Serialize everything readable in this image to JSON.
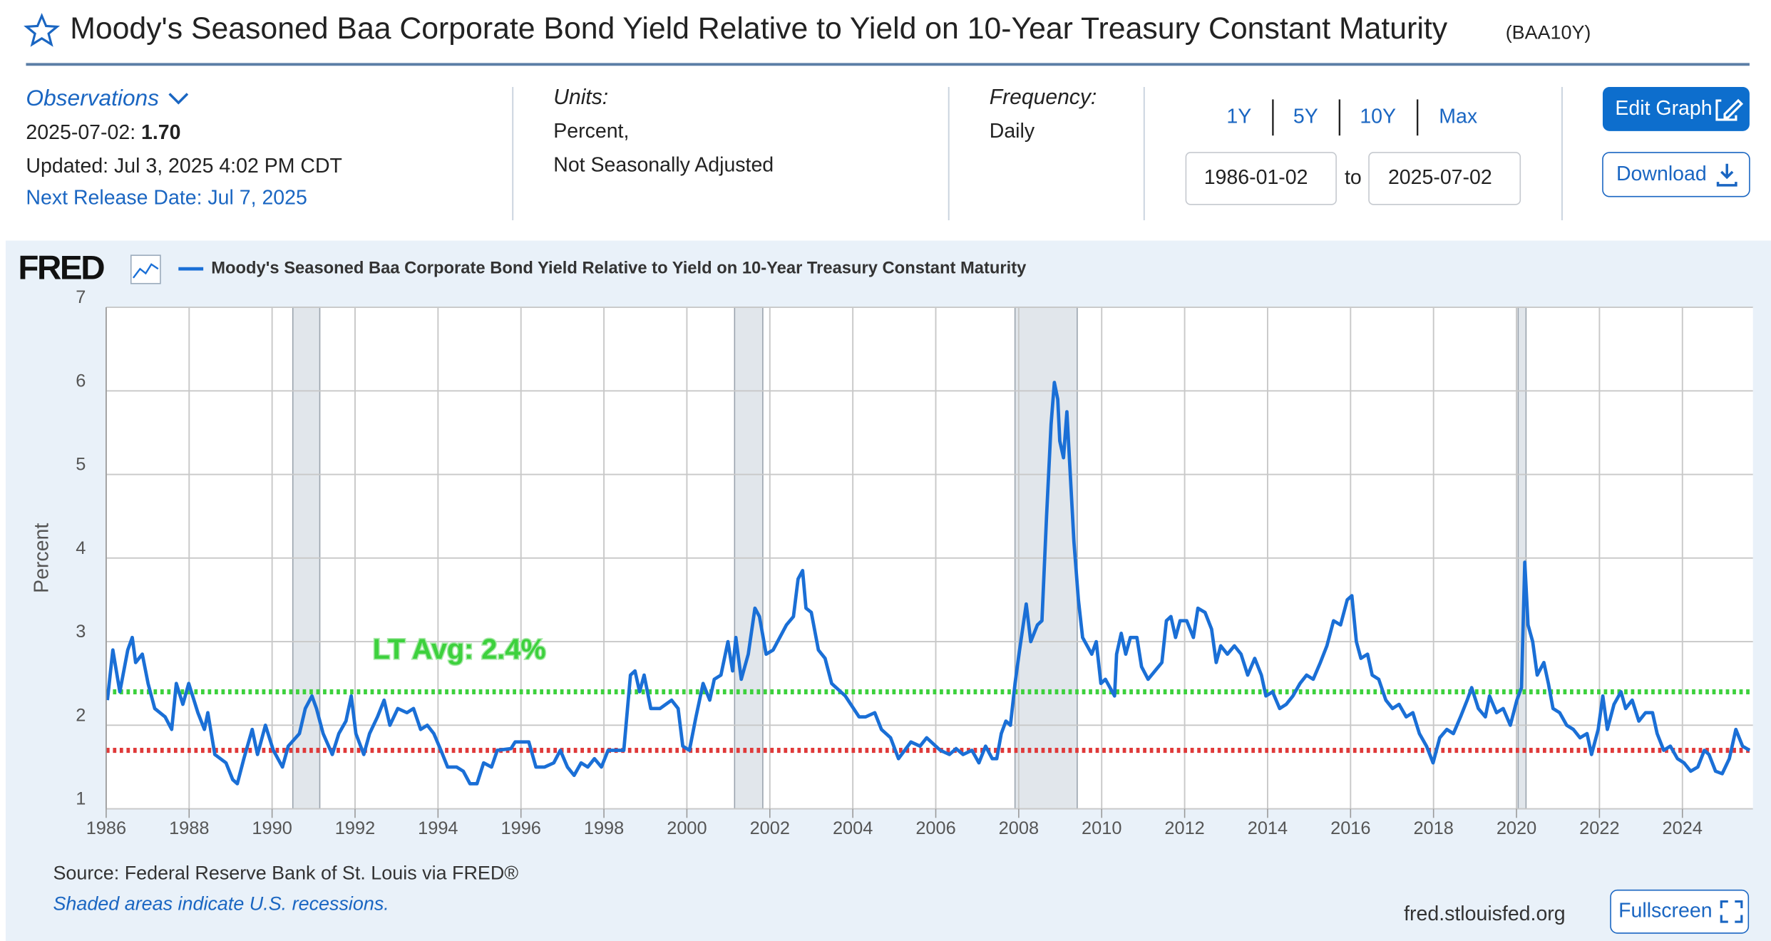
{
  "header": {
    "title": "Moody's Seasoned Baa Corporate Bond Yield Relative to Yield on 10-Year Treasury Constant Maturity",
    "code": "(BAA10Y)"
  },
  "observations": {
    "label": "Observations",
    "date": "2025-07-02:",
    "value": "1.70",
    "updated": "Updated: Jul 3, 2025 4:02 PM CDT",
    "next_release": "Next Release Date: Jul 7, 2025"
  },
  "units": {
    "label": "Units:",
    "lines": [
      "Percent,",
      "Not Seasonally Adjusted"
    ]
  },
  "frequency": {
    "label": "Frequency:",
    "value": "Daily"
  },
  "range_buttons": [
    "1Y",
    "5Y",
    "10Y",
    "Max"
  ],
  "date_range": {
    "start": "1986-01-02",
    "to": "to",
    "end": "2025-07-02"
  },
  "buttons": {
    "edit": "Edit Graph",
    "download": "Download",
    "fullscreen": "Fullscreen"
  },
  "chart_header": {
    "logo": "FRED"
  },
  "footer": {
    "source": "Source: Federal Reserve Bank of St. Louis via FRED®",
    "note": "Shaded areas indicate U.S. recessions.",
    "site": "fred.stlouisfed.org"
  },
  "chart_data": {
    "type": "line",
    "y_label": "Percent",
    "xlim": [
      1986,
      2025.7
    ],
    "xticks": [
      1986,
      1988,
      1990,
      1992,
      1994,
      1996,
      1998,
      2000,
      2002,
      2004,
      2006,
      2008,
      2010,
      2012,
      2014,
      2016,
      2018,
      2020,
      2022,
      2024
    ],
    "ylim": [
      1,
      7
    ],
    "yticks": [
      1,
      2,
      3,
      4,
      5,
      6,
      7
    ],
    "grid": true,
    "recessions": [
      [
        1990.5,
        1991.15
      ],
      [
        2001.15,
        2001.83
      ],
      [
        2007.91,
        2009.41
      ],
      [
        2020.04,
        2020.23
      ]
    ],
    "reference_lines": [
      {
        "value": 2.4,
        "color": "#3dd13d",
        "label": "LT Avg: 2.4%"
      },
      {
        "value": 1.7,
        "color": "#e03a3a"
      }
    ],
    "series": [
      {
        "name": "Moody's Seasoned Baa Corporate Bond Yield Relative to Yield on 10-Year Treasury Constant Maturity",
        "color": "#1a6fd6",
        "x": [
          1986.03,
          1986.16,
          1986.33,
          1986.52,
          1986.63,
          1986.71,
          1986.87,
          1987.01,
          1987.17,
          1987.42,
          1987.58,
          1987.69,
          1987.85,
          1987.99,
          1988.21,
          1988.37,
          1988.45,
          1988.62,
          1988.89,
          1989.05,
          1989.16,
          1989.32,
          1989.52,
          1989.65,
          1989.84,
          1990.03,
          1990.25,
          1990.39,
          1990.66,
          1990.8,
          1990.96,
          1991.07,
          1991.23,
          1991.45,
          1991.61,
          1991.78,
          1991.91,
          1992.02,
          1992.21,
          1992.35,
          1992.54,
          1992.7,
          1992.84,
          1993.03,
          1993.25,
          1993.41,
          1993.58,
          1993.74,
          1993.9,
          1994.07,
          1994.23,
          1994.45,
          1994.61,
          1994.77,
          1994.94,
          1995.1,
          1995.29,
          1995.43,
          1995.76,
          1995.86,
          1996.19,
          1996.36,
          1996.57,
          1996.79,
          1996.95,
          1997.12,
          1997.28,
          1997.45,
          1997.61,
          1997.77,
          1997.94,
          1998.1,
          1998.48,
          1998.64,
          1998.75,
          1998.86,
          1998.97,
          1999.13,
          1999.35,
          1999.63,
          1999.79,
          1999.9,
          2000.06,
          2000.22,
          2000.39,
          2000.55,
          2000.66,
          2000.82,
          2000.99,
          2001.1,
          2001.18,
          2001.31,
          2001.48,
          2001.64,
          2001.75,
          2001.91,
          2002.08,
          2002.4,
          2002.57,
          2002.68,
          2002.79,
          2002.87,
          2003.0,
          2003.17,
          2003.33,
          2003.49,
          2003.82,
          2004.15,
          2004.31,
          2004.53,
          2004.69,
          2004.91,
          2005.1,
          2005.4,
          2005.62,
          2005.78,
          2006.11,
          2006.33,
          2006.49,
          2006.66,
          2006.87,
          2007.04,
          2007.2,
          2007.36,
          2007.47,
          2007.58,
          2007.69,
          2007.8,
          2007.91,
          2008.02,
          2008.18,
          2008.29,
          2008.45,
          2008.56,
          2008.67,
          2008.78,
          2008.86,
          2008.94,
          2008.99,
          2009.08,
          2009.16,
          2009.22,
          2009.33,
          2009.44,
          2009.54,
          2009.76,
          2009.87,
          2009.98,
          2010.09,
          2010.31,
          2010.36,
          2010.47,
          2010.58,
          2010.69,
          2010.85,
          2010.96,
          2011.12,
          2011.45,
          2011.56,
          2011.67,
          2011.78,
          2011.89,
          2012.05,
          2012.21,
          2012.32,
          2012.49,
          2012.65,
          2012.76,
          2012.87,
          2013.03,
          2013.2,
          2013.36,
          2013.52,
          2013.69,
          2013.85,
          2013.96,
          2014.12,
          2014.29,
          2014.45,
          2014.61,
          2014.78,
          2014.94,
          2015.1,
          2015.27,
          2015.43,
          2015.59,
          2015.76,
          2015.92,
          2016.03,
          2016.14,
          2016.25,
          2016.41,
          2016.52,
          2016.68,
          2016.85,
          2017.01,
          2017.17,
          2017.34,
          2017.5,
          2017.66,
          2017.83,
          2017.99,
          2018.15,
          2018.32,
          2018.48,
          2018.65,
          2018.81,
          2018.92,
          2019.08,
          2019.25,
          2019.35,
          2019.52,
          2019.68,
          2019.85,
          2020.01,
          2020.12,
          2020.2,
          2020.28,
          2020.39,
          2020.5,
          2020.66,
          2020.77,
          2020.88,
          2021.04,
          2021.21,
          2021.37,
          2021.53,
          2021.7,
          2021.81,
          2021.97,
          2022.08,
          2022.19,
          2022.35,
          2022.52,
          2022.63,
          2022.79,
          2022.95,
          2023.11,
          2023.28,
          2023.39,
          2023.55,
          2023.71,
          2023.88,
          2024.04,
          2024.2,
          2024.37,
          2024.53,
          2024.64,
          2024.8,
          2024.96,
          2025.13,
          2025.29,
          2025.45,
          2025.62
        ],
        "values": [
          2.3,
          2.9,
          2.4,
          2.9,
          3.05,
          2.75,
          2.85,
          2.5,
          2.2,
          2.1,
          1.95,
          2.5,
          2.25,
          2.5,
          2.15,
          1.95,
          2.15,
          1.65,
          1.55,
          1.35,
          1.3,
          1.6,
          1.95,
          1.65,
          2.0,
          1.7,
          1.5,
          1.75,
          1.9,
          2.2,
          2.35,
          2.2,
          1.9,
          1.65,
          1.9,
          2.05,
          2.35,
          1.9,
          1.65,
          1.9,
          2.1,
          2.3,
          2.0,
          2.2,
          2.15,
          2.2,
          1.95,
          2.0,
          1.9,
          1.7,
          1.5,
          1.5,
          1.45,
          1.3,
          1.3,
          1.55,
          1.5,
          1.7,
          1.72,
          1.8,
          1.8,
          1.5,
          1.5,
          1.55,
          1.7,
          1.5,
          1.4,
          1.55,
          1.5,
          1.6,
          1.5,
          1.7,
          1.7,
          2.6,
          2.65,
          2.4,
          2.6,
          2.2,
          2.2,
          2.3,
          2.2,
          1.75,
          1.7,
          2.1,
          2.5,
          2.3,
          2.55,
          2.6,
          3.0,
          2.65,
          3.05,
          2.55,
          2.85,
          3.4,
          3.3,
          2.85,
          2.9,
          3.2,
          3.3,
          3.75,
          3.85,
          3.4,
          3.35,
          2.9,
          2.8,
          2.5,
          2.35,
          2.1,
          2.1,
          2.15,
          1.95,
          1.85,
          1.6,
          1.8,
          1.75,
          1.85,
          1.7,
          1.65,
          1.72,
          1.65,
          1.7,
          1.55,
          1.75,
          1.6,
          1.6,
          1.9,
          2.05,
          2.0,
          2.5,
          2.9,
          3.45,
          3.0,
          3.2,
          3.25,
          4.5,
          5.6,
          6.1,
          5.9,
          5.4,
          5.2,
          5.75,
          5.2,
          4.2,
          3.5,
          3.05,
          2.85,
          3.0,
          2.5,
          2.55,
          2.35,
          2.85,
          3.1,
          2.85,
          3.05,
          3.05,
          2.7,
          2.55,
          2.75,
          3.25,
          3.3,
          3.05,
          3.25,
          3.25,
          3.05,
          3.4,
          3.35,
          3.15,
          2.75,
          2.95,
          2.85,
          2.95,
          2.85,
          2.6,
          2.8,
          2.6,
          2.35,
          2.4,
          2.2,
          2.25,
          2.35,
          2.5,
          2.6,
          2.55,
          2.75,
          2.95,
          3.25,
          3.2,
          3.5,
          3.55,
          3.0,
          2.8,
          2.85,
          2.6,
          2.55,
          2.3,
          2.2,
          2.25,
          2.1,
          2.15,
          1.9,
          1.75,
          1.55,
          1.85,
          1.95,
          1.9,
          2.1,
          2.3,
          2.45,
          2.2,
          2.1,
          2.35,
          2.15,
          2.2,
          2.0,
          2.3,
          2.45,
          3.95,
          3.2,
          3.0,
          2.6,
          2.75,
          2.5,
          2.2,
          2.15,
          2.0,
          1.95,
          1.85,
          1.9,
          1.65,
          1.95,
          2.35,
          1.95,
          2.25,
          2.4,
          2.2,
          2.3,
          2.05,
          2.15,
          2.15,
          1.9,
          1.7,
          1.75,
          1.6,
          1.55,
          1.45,
          1.5,
          1.7,
          1.65,
          1.45,
          1.42,
          1.6,
          1.95,
          1.75,
          1.7
        ]
      }
    ]
  }
}
